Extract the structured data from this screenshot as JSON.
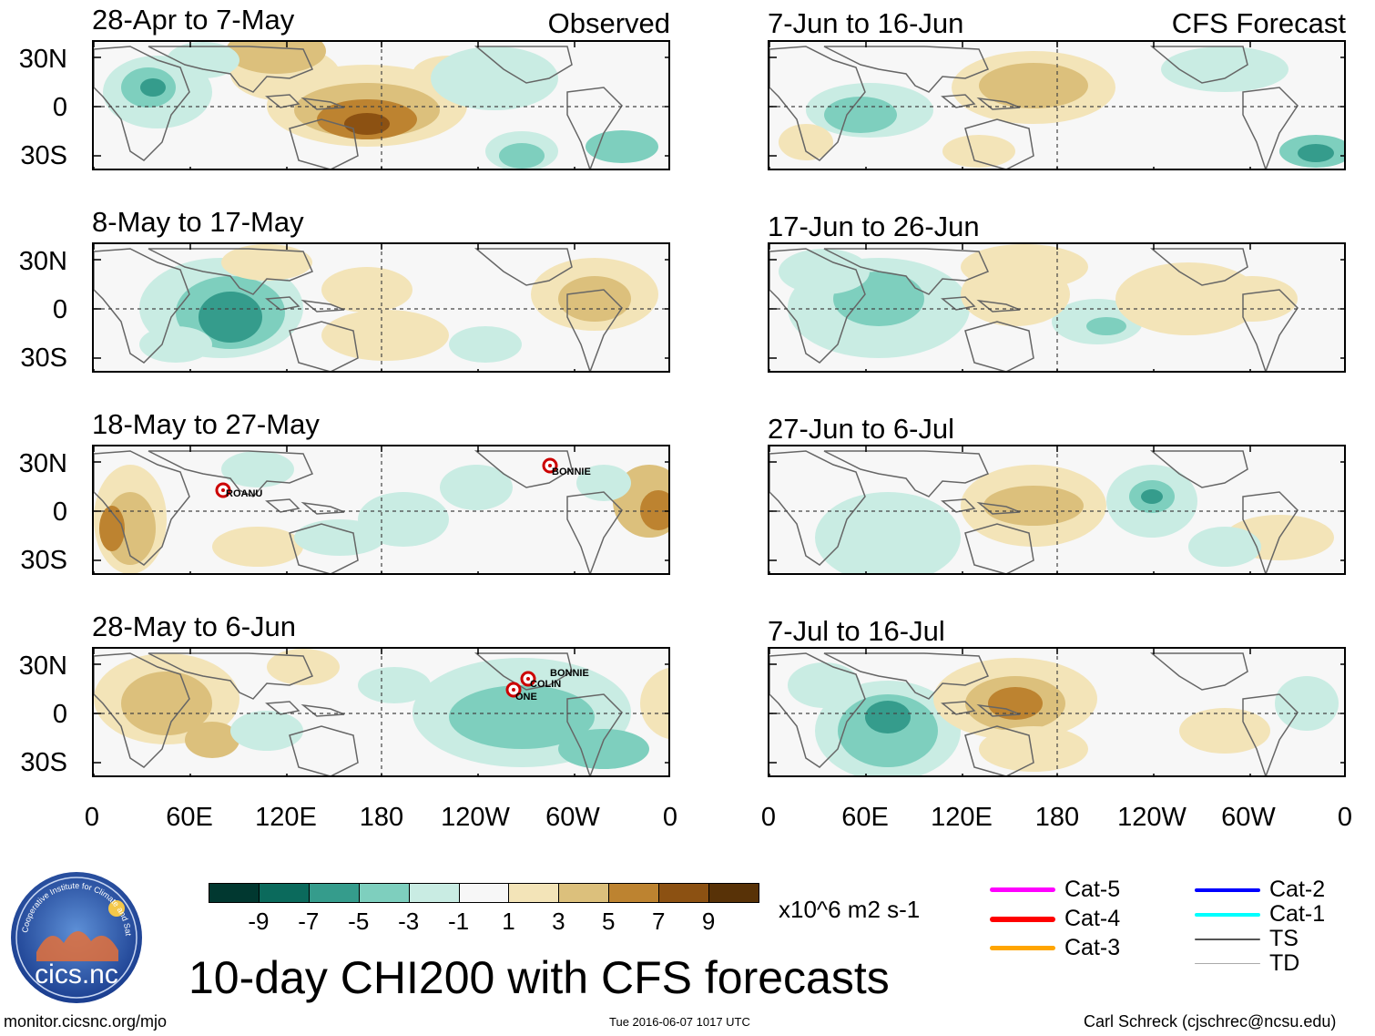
{
  "columns": {
    "left_label": "Observed",
    "right_label": "CFS Forecast"
  },
  "observed_panels": [
    {
      "title": "28-Apr to 7-May",
      "storms": []
    },
    {
      "title": "8-May to 17-May",
      "storms": []
    },
    {
      "title": "18-May to 27-May",
      "storms": [
        "ROANU",
        "BONNIE"
      ]
    },
    {
      "title": "28-May to 6-Jun",
      "storms": [
        "BONNIE",
        "COLIN",
        "ONE"
      ]
    }
  ],
  "forecast_panels": [
    {
      "title": "7-Jun to 16-Jun"
    },
    {
      "title": "17-Jun to 26-Jun"
    },
    {
      "title": "27-Jun to 6-Jul"
    },
    {
      "title": "7-Jul to 16-Jul"
    }
  ],
  "lat_labels": [
    "30N",
    "0",
    "30S"
  ],
  "lon_labels": [
    "0",
    "60E",
    "120E",
    "180",
    "120W",
    "60W",
    "0"
  ],
  "colorbar": {
    "ticks": [
      "-9",
      "-7",
      "-5",
      "-3",
      "-1",
      "1",
      "3",
      "5",
      "7",
      "9"
    ],
    "units": "x10^6 m2 s-1",
    "colors": [
      "#013830",
      "#0b6a5c",
      "#359c8c",
      "#7ecfbe",
      "#c9ece3",
      "#f7f7f7",
      "#f3e4b8",
      "#dcc07c",
      "#bd8330",
      "#8c5112",
      "#583207"
    ]
  },
  "legend": [
    {
      "label": "Cat-5",
      "color": "#ff00ff"
    },
    {
      "label": "Cat-4",
      "color": "#ff0000"
    },
    {
      "label": "Cat-3",
      "color": "#ffa500"
    },
    {
      "label": "Cat-2",
      "color": "#0000ff"
    },
    {
      "label": "Cat-1",
      "color": "#00ffff"
    },
    {
      "label": "TS",
      "color": "#555555"
    },
    {
      "label": "TD",
      "color": "#aaaaaa"
    }
  ],
  "logo_text": "cics.nc",
  "logo_ring_text": "Cooperative Institute for Climate and Satellites",
  "main_title": "10-day CHI200 with CFS forecasts",
  "footer": {
    "website": "monitor.cicsnc.org/mjo",
    "timestamp": "Tue 2016-06-07 1017 UTC",
    "author": "Carl Schreck (cjschrec@ncsu.edu)"
  }
}
